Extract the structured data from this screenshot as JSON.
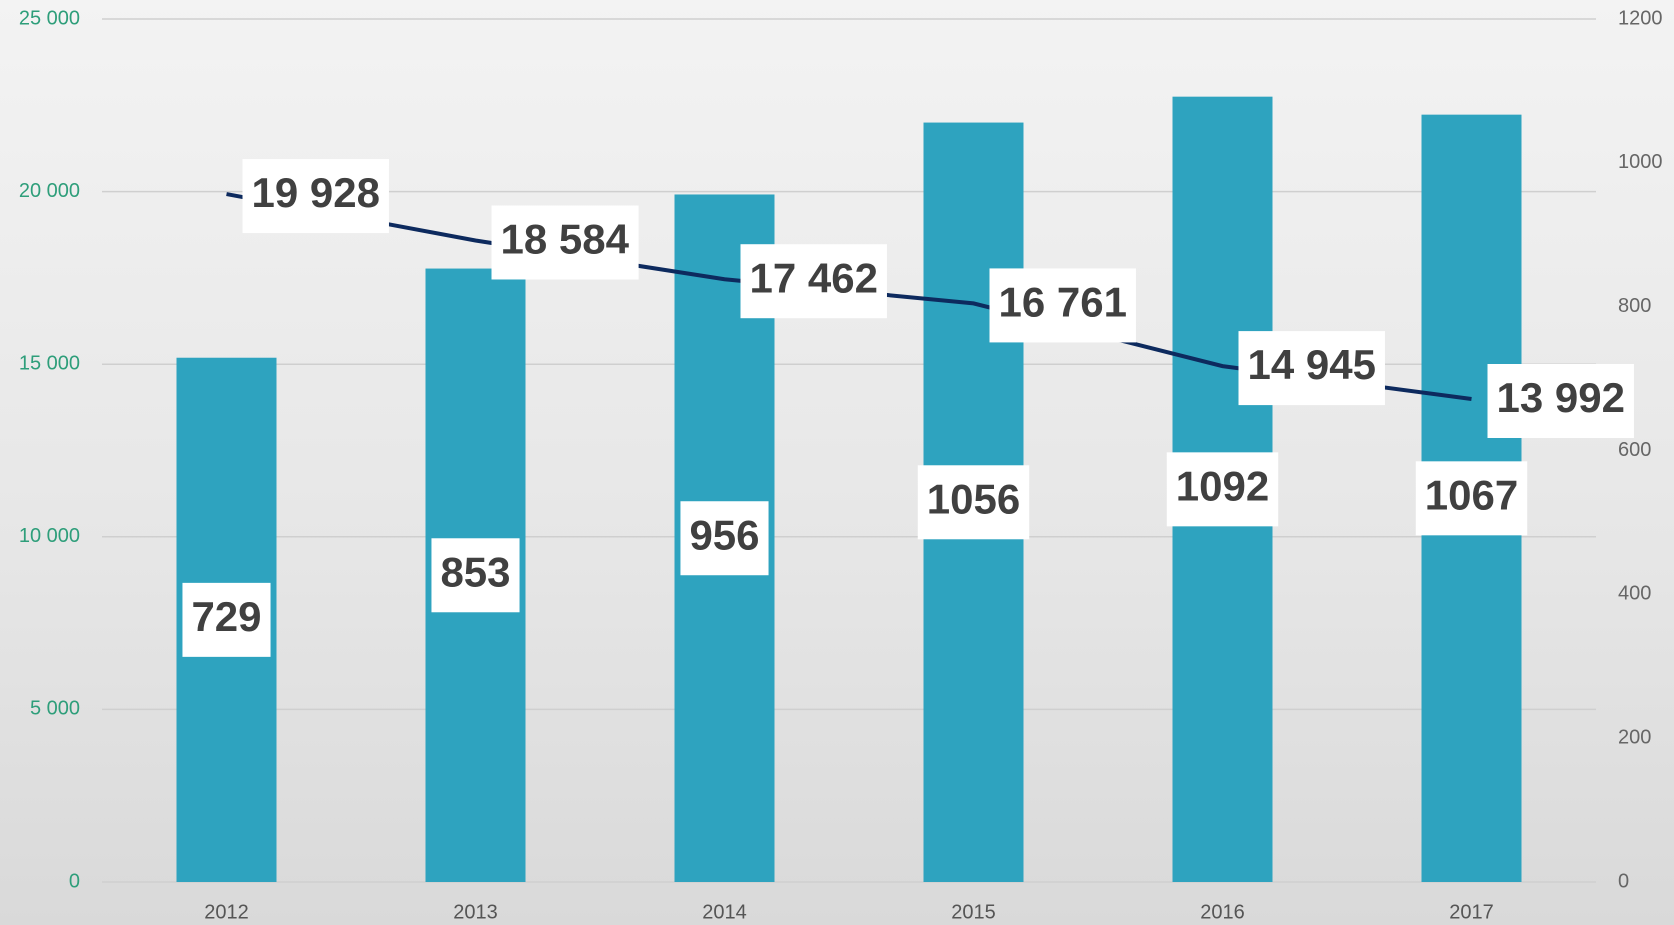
{
  "chart_data": {
    "type": "bar_line",
    "categories": [
      "2012",
      "2013",
      "2014",
      "2015",
      "2016",
      "2017"
    ],
    "series": [
      {
        "type": "bar",
        "color": "#2ea3bf",
        "axis": "y2",
        "values": [
          729,
          853,
          956,
          1056,
          1092,
          1067
        ]
      },
      {
        "type": "line",
        "color": "#0d2a5e",
        "axis": "y",
        "values": [
          19928,
          18584,
          17462,
          16761,
          14945,
          13992
        ],
        "value_labels": [
          "19 928",
          "18 584",
          "17 462",
          "16 761",
          "14 945",
          "13 992"
        ]
      }
    ],
    "ylim": [
      0,
      25000
    ],
    "yticks": [
      {
        "value": 0,
        "label": "0"
      },
      {
        "value": 5000,
        "label": "5 000"
      },
      {
        "value": 10000,
        "label": "10 000"
      },
      {
        "value": 15000,
        "label": "15 000"
      },
      {
        "value": 20000,
        "label": "20 000"
      },
      {
        "value": 25000,
        "label": "25 000"
      }
    ],
    "y2lim": [
      0,
      1200
    ],
    "y2ticks": [
      0,
      200,
      400,
      600,
      800,
      1000,
      1200
    ],
    "grid": true
  }
}
